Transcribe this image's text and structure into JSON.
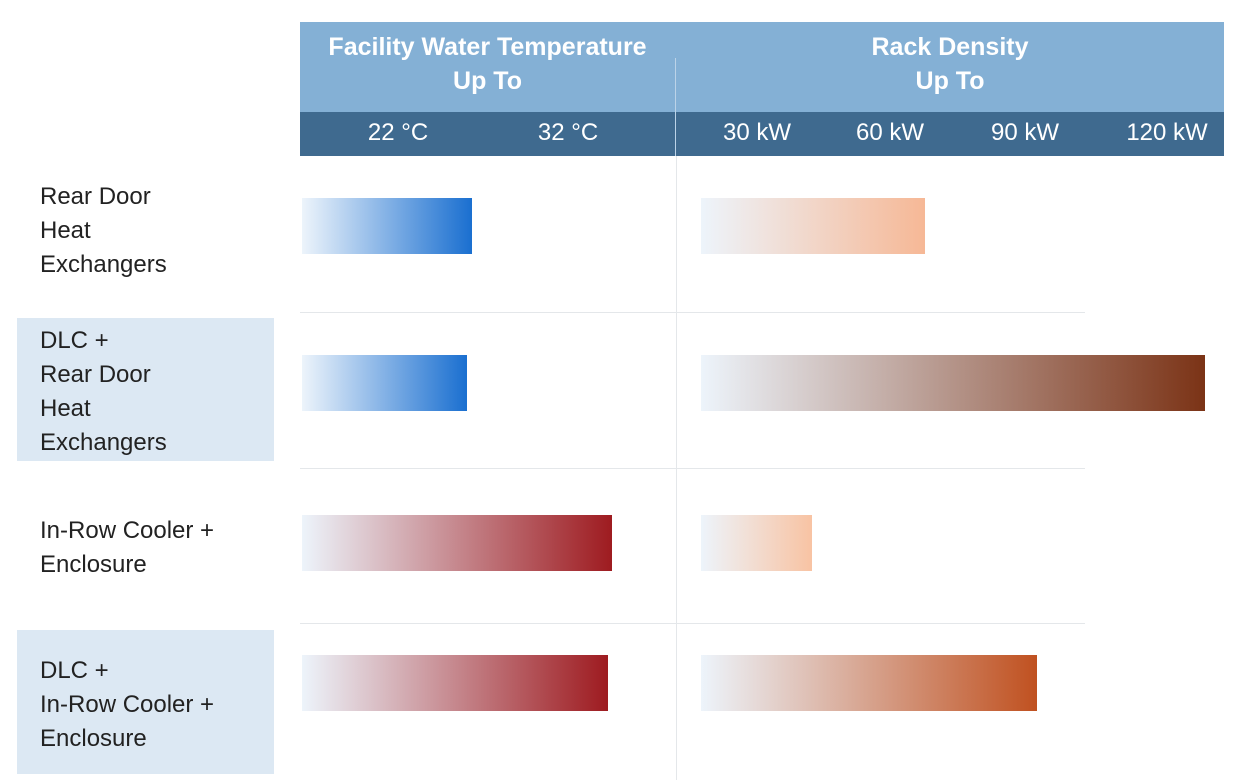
{
  "chart_data": [
    {
      "type": "bar",
      "orientation": "horizontal",
      "title": "Facility Water Temperature\nUp To",
      "tick_labels": [
        "22 °C",
        "32 °C"
      ],
      "categories": [
        "Rear Door\nHeat\nExchangers",
        "DLC +\nRear Door\nHeat\nExchangers",
        "In-Row Cooler +\nEnclosure",
        "DLC +\nIn-Row Cooler +\nEnclosure"
      ],
      "values": [
        22,
        22,
        32,
        32
      ],
      "unit": "°C",
      "bar_colors": [
        "#1a6fd0",
        "#1a6fd0",
        "#9e1b20",
        "#9e1b20"
      ]
    },
    {
      "type": "bar",
      "orientation": "horizontal",
      "title": "Rack Density\nUp To",
      "tick_labels": [
        "30 kW",
        "60 kW",
        "90 kW",
        "120 kW"
      ],
      "categories": [
        "Rear Door\nHeat\nExchangers",
        "DLC +\nRear Door\nHeat\nExchangers",
        "In-Row Cooler +\nEnclosure",
        "DLC +\nIn-Row Cooler +\nEnclosure"
      ],
      "values": [
        60,
        120,
        30,
        90
      ],
      "unit": "kW",
      "bar_colors": [
        "#f6b896",
        "#7b3316",
        "#f8c3a3",
        "#c05120"
      ]
    }
  ],
  "colors": {
    "header_band": "#84b0d5",
    "tick_band": "#3f6a8f",
    "row_shade": "#dce8f3",
    "bar_start": "#edf4fb"
  }
}
